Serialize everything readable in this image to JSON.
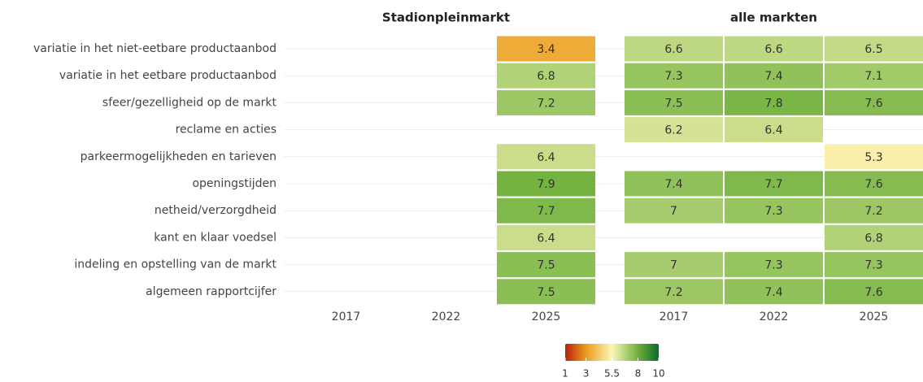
{
  "chart_data": {
    "type": "heatmap",
    "categories": [
      "variatie in het niet-eetbare productaanbod",
      "variatie in het eetbare productaanbod",
      "sfeer/gezelligheid op de markt",
      "reclame en acties",
      "parkeermogelijkheden en tarieven",
      "openingstijden",
      "netheid/verzorgdheid",
      "kant en klaar voedsel",
      "indeling en opstelling van de markt",
      "algemeen rapportcijfer"
    ],
    "x": [
      2017,
      2022,
      2025
    ],
    "panels": [
      {
        "title": "Stadionpleinmarkt",
        "values": [
          [
            null,
            null,
            3.4
          ],
          [
            null,
            null,
            6.8
          ],
          [
            null,
            null,
            7.2
          ],
          [
            null,
            null,
            null
          ],
          [
            null,
            null,
            6.4
          ],
          [
            null,
            null,
            7.9
          ],
          [
            null,
            null,
            7.7
          ],
          [
            null,
            null,
            6.4
          ],
          [
            null,
            null,
            7.5
          ],
          [
            null,
            null,
            7.5
          ]
        ]
      },
      {
        "title": "alle markten",
        "values": [
          [
            6.6,
            6.6,
            6.5
          ],
          [
            7.3,
            7.4,
            7.1
          ],
          [
            7.5,
            7.8,
            7.6
          ],
          [
            6.2,
            6.4,
            null
          ],
          [
            null,
            null,
            5.3
          ],
          [
            7.4,
            7.7,
            7.6
          ],
          [
            7,
            7.3,
            7.2
          ],
          [
            null,
            null,
            6.8
          ],
          [
            7,
            7.3,
            7.3
          ],
          [
            7.2,
            7.4,
            7.6
          ]
        ]
      }
    ],
    "colorscale": {
      "lim": [
        1,
        10
      ],
      "ticks": [
        1,
        3,
        5.5,
        8,
        10
      ],
      "colors": [
        "#b8200c",
        "#eb9c1e",
        "#fbf7b8",
        "#6fb03c",
        "#0b6b2c"
      ]
    }
  }
}
